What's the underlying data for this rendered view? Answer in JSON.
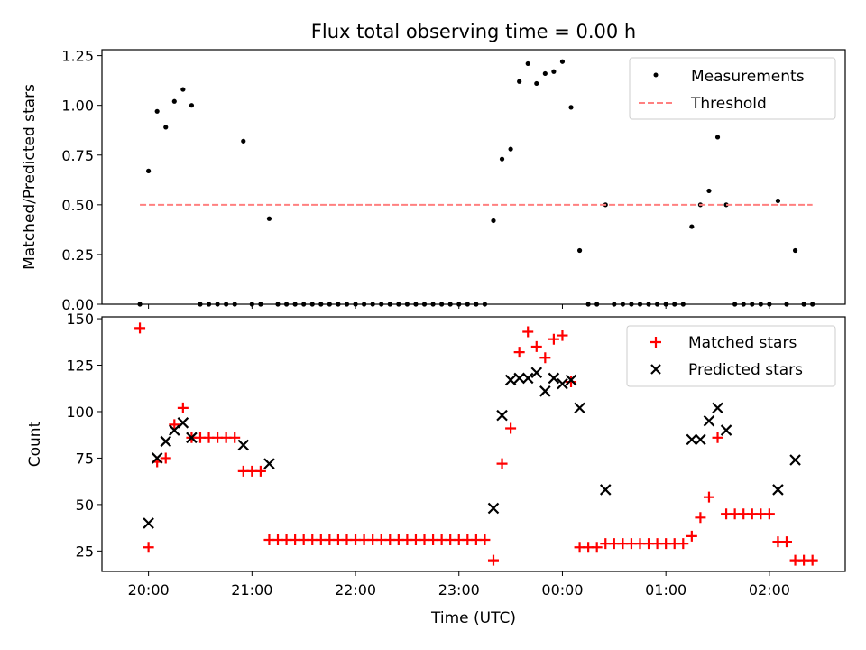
{
  "chart_data": [
    {
      "type": "scatter",
      "title": "Flux total observing time = 0.00 h",
      "xlabel": "",
      "ylabel": "Matched/Predicted stars",
      "ylim": [
        0,
        1.28
      ],
      "xlim": [
        "19:33",
        "02:44"
      ],
      "x_ticks": [
        "20:00",
        "21:00",
        "22:00",
        "23:00",
        "00:00",
        "01:00",
        "02:00"
      ],
      "y_ticks": [
        "0.00",
        "0.25",
        "0.50",
        "0.75",
        "1.00",
        "1.25"
      ],
      "legend_position": "top-right",
      "series": [
        {
          "name": "Measurements",
          "marker": "dot",
          "color": "#000000",
          "points": [
            [
              "19:55",
              0.0
            ],
            [
              "20:00",
              0.67
            ],
            [
              "20:05",
              0.97
            ],
            [
              "20:10",
              0.89
            ],
            [
              "20:15",
              1.02
            ],
            [
              "20:20",
              1.08
            ],
            [
              "20:25",
              1.0
            ],
            [
              "20:30",
              0.0
            ],
            [
              "20:35",
              0.0
            ],
            [
              "20:40",
              0.0
            ],
            [
              "20:45",
              0.0
            ],
            [
              "20:50",
              0.0
            ],
            [
              "20:55",
              0.82
            ],
            [
              "21:00",
              0.0
            ],
            [
              "21:05",
              0.0
            ],
            [
              "21:10",
              0.43
            ],
            [
              "21:15",
              0.0
            ],
            [
              "21:20",
              0.0
            ],
            [
              "21:25",
              0.0
            ],
            [
              "21:30",
              0.0
            ],
            [
              "21:35",
              0.0
            ],
            [
              "21:40",
              0.0
            ],
            [
              "21:45",
              0.0
            ],
            [
              "21:50",
              0.0
            ],
            [
              "21:55",
              0.0
            ],
            [
              "22:00",
              0.0
            ],
            [
              "22:05",
              0.0
            ],
            [
              "22:10",
              0.0
            ],
            [
              "22:15",
              0.0
            ],
            [
              "22:20",
              0.0
            ],
            [
              "22:25",
              0.0
            ],
            [
              "22:30",
              0.0
            ],
            [
              "22:35",
              0.0
            ],
            [
              "22:40",
              0.0
            ],
            [
              "22:45",
              0.0
            ],
            [
              "22:50",
              0.0
            ],
            [
              "22:55",
              0.0
            ],
            [
              "23:00",
              0.0
            ],
            [
              "23:05",
              0.0
            ],
            [
              "23:10",
              0.0
            ],
            [
              "23:15",
              0.0
            ],
            [
              "23:20",
              0.42
            ],
            [
              "23:25",
              0.73
            ],
            [
              "23:30",
              0.78
            ],
            [
              "23:35",
              1.12
            ],
            [
              "23:40",
              1.21
            ],
            [
              "23:45",
              1.11
            ],
            [
              "23:50",
              1.16
            ],
            [
              "23:55",
              1.17
            ],
            [
              "00:00",
              1.22
            ],
            [
              "00:05",
              0.99
            ],
            [
              "00:10",
              0.27
            ],
            [
              "00:15",
              0.0
            ],
            [
              "00:20",
              0.0
            ],
            [
              "00:25",
              0.5
            ],
            [
              "00:30",
              0.0
            ],
            [
              "00:35",
              0.0
            ],
            [
              "00:40",
              0.0
            ],
            [
              "00:45",
              0.0
            ],
            [
              "00:50",
              0.0
            ],
            [
              "00:55",
              0.0
            ],
            [
              "01:00",
              0.0
            ],
            [
              "01:05",
              0.0
            ],
            [
              "01:10",
              0.0
            ],
            [
              "01:15",
              0.39
            ],
            [
              "01:20",
              0.5
            ],
            [
              "01:25",
              0.57
            ],
            [
              "01:30",
              0.84
            ],
            [
              "01:35",
              0.5
            ],
            [
              "01:40",
              0.0
            ],
            [
              "01:45",
              0.0
            ],
            [
              "01:50",
              0.0
            ],
            [
              "01:55",
              0.0
            ],
            [
              "02:00",
              0.0
            ],
            [
              "02:05",
              0.52
            ],
            [
              "02:10",
              0.0
            ],
            [
              "02:15",
              0.27
            ],
            [
              "02:20",
              0.0
            ],
            [
              "02:25",
              0.0
            ]
          ]
        },
        {
          "name": "Threshold",
          "marker": "dashed-line",
          "color": "#ff8080",
          "points": [
            [
              "19:55",
              0.5
            ],
            [
              "02:25",
              0.5
            ]
          ]
        }
      ]
    },
    {
      "type": "scatter",
      "title": "",
      "xlabel": "Time (UTC)",
      "ylabel": "Count",
      "ylim": [
        14,
        151
      ],
      "xlim": [
        "19:33",
        "02:44"
      ],
      "x_ticks": [
        "20:00",
        "21:00",
        "22:00",
        "23:00",
        "00:00",
        "01:00",
        "02:00"
      ],
      "y_ticks": [
        "25",
        "50",
        "75",
        "100",
        "125",
        "150"
      ],
      "legend_position": "top-right",
      "series": [
        {
          "name": "Matched stars",
          "marker": "plus",
          "color": "#ff0000",
          "points": [
            [
              "19:55",
              145
            ],
            [
              "20:00",
              27
            ],
            [
              "20:05",
              73
            ],
            [
              "20:10",
              75
            ],
            [
              "20:15",
              93
            ],
            [
              "20:20",
              102
            ],
            [
              "20:25",
              86
            ],
            [
              "20:30",
              86
            ],
            [
              "20:35",
              86
            ],
            [
              "20:40",
              86
            ],
            [
              "20:45",
              86
            ],
            [
              "20:50",
              86
            ],
            [
              "20:55",
              68
            ],
            [
              "21:00",
              68
            ],
            [
              "21:05",
              68
            ],
            [
              "21:10",
              31
            ],
            [
              "21:15",
              31
            ],
            [
              "21:20",
              31
            ],
            [
              "21:25",
              31
            ],
            [
              "21:30",
              31
            ],
            [
              "21:35",
              31
            ],
            [
              "21:40",
              31
            ],
            [
              "21:45",
              31
            ],
            [
              "21:50",
              31
            ],
            [
              "21:55",
              31
            ],
            [
              "22:00",
              31
            ],
            [
              "22:05",
              31
            ],
            [
              "22:10",
              31
            ],
            [
              "22:15",
              31
            ],
            [
              "22:20",
              31
            ],
            [
              "22:25",
              31
            ],
            [
              "22:30",
              31
            ],
            [
              "22:35",
              31
            ],
            [
              "22:40",
              31
            ],
            [
              "22:45",
              31
            ],
            [
              "22:50",
              31
            ],
            [
              "22:55",
              31
            ],
            [
              "23:00",
              31
            ],
            [
              "23:05",
              31
            ],
            [
              "23:10",
              31
            ],
            [
              "23:15",
              31
            ],
            [
              "23:20",
              20
            ],
            [
              "23:25",
              72
            ],
            [
              "23:30",
              91
            ],
            [
              "23:35",
              132
            ],
            [
              "23:40",
              143
            ],
            [
              "23:45",
              135
            ],
            [
              "23:50",
              129
            ],
            [
              "23:55",
              139
            ],
            [
              "00:00",
              141
            ],
            [
              "00:05",
              116
            ],
            [
              "00:10",
              27
            ],
            [
              "00:15",
              27
            ],
            [
              "00:20",
              27
            ],
            [
              "00:25",
              29
            ],
            [
              "00:30",
              29
            ],
            [
              "00:35",
              29
            ],
            [
              "00:40",
              29
            ],
            [
              "00:45",
              29
            ],
            [
              "00:50",
              29
            ],
            [
              "00:55",
              29
            ],
            [
              "01:00",
              29
            ],
            [
              "01:05",
              29
            ],
            [
              "01:10",
              29
            ],
            [
              "01:15",
              33
            ],
            [
              "01:20",
              43
            ],
            [
              "01:25",
              54
            ],
            [
              "01:30",
              86
            ],
            [
              "01:35",
              45
            ],
            [
              "01:40",
              45
            ],
            [
              "01:45",
              45
            ],
            [
              "01:50",
              45
            ],
            [
              "01:55",
              45
            ],
            [
              "02:00",
              45
            ],
            [
              "02:05",
              30
            ],
            [
              "02:10",
              30
            ],
            [
              "02:15",
              20
            ],
            [
              "02:20",
              20
            ],
            [
              "02:25",
              20
            ]
          ]
        },
        {
          "name": "Predicted stars",
          "marker": "x",
          "color": "#000000",
          "points": [
            [
              "20:00",
              40
            ],
            [
              "20:05",
              75
            ],
            [
              "20:10",
              84
            ],
            [
              "20:15",
              90
            ],
            [
              "20:20",
              94
            ],
            [
              "20:25",
              86
            ],
            [
              "20:55",
              82
            ],
            [
              "21:10",
              72
            ],
            [
              "23:20",
              48
            ],
            [
              "23:25",
              98
            ],
            [
              "23:30",
              117
            ],
            [
              "23:35",
              118
            ],
            [
              "23:40",
              118
            ],
            [
              "23:45",
              121
            ],
            [
              "23:50",
              111
            ],
            [
              "23:55",
              118
            ],
            [
              "00:00",
              115
            ],
            [
              "00:05",
              117
            ],
            [
              "00:10",
              102
            ],
            [
              "00:25",
              58
            ],
            [
              "01:15",
              85
            ],
            [
              "01:20",
              85
            ],
            [
              "01:25",
              95
            ],
            [
              "01:30",
              102
            ],
            [
              "01:35",
              90
            ],
            [
              "02:05",
              58
            ],
            [
              "02:15",
              74
            ]
          ]
        }
      ]
    }
  ]
}
